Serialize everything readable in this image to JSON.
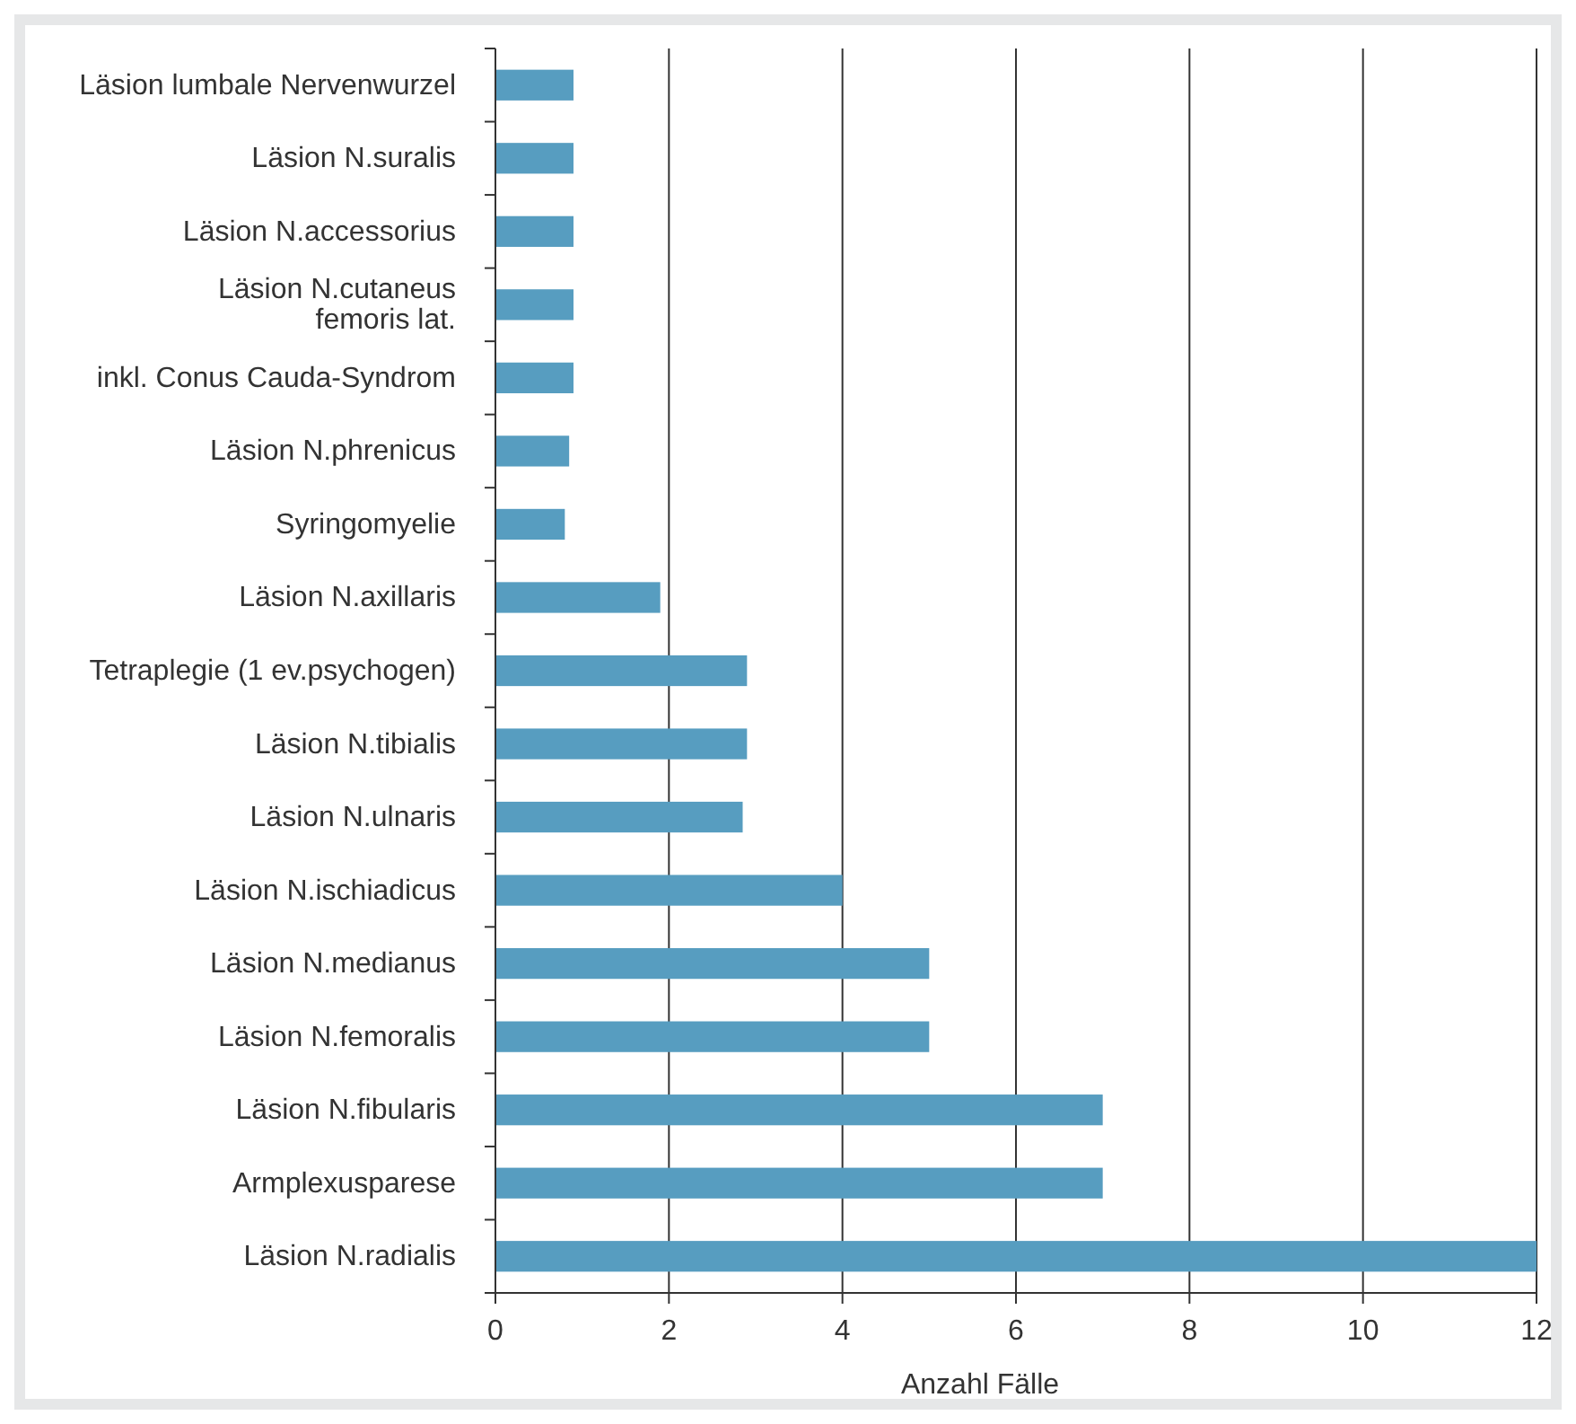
{
  "chart_data": {
    "type": "bar",
    "orientation": "horizontal",
    "xlabel": "Anzahl Fälle",
    "categories": [
      "Läsion lumbale Nervenwurzel",
      "Läsion N.suralis",
      "Läsion N.accessorius",
      "Läsion N.cutaneus\nfemoris lat.",
      "inkl. Conus Cauda-Syndrom",
      "Läsion N.phrenicus",
      "Syringomyelie",
      "Läsion N.axillaris",
      "Tetraplegie (1 ev.psychogen)",
      "Läsion N.tibialis",
      "Läsion N.ulnaris",
      "Läsion N.ischiadicus",
      "Läsion N.medianus",
      "Läsion N.femoralis",
      "Läsion N.fibularis",
      "Armplexusparese",
      "Läsion N.radialis"
    ],
    "values": [
      0.9,
      0.9,
      0.9,
      0.9,
      0.9,
      0.85,
      0.8,
      1.9,
      2.9,
      2.9,
      2.85,
      4,
      5,
      5,
      7,
      7,
      12
    ],
    "color": "#579dc0",
    "xlim": [
      0,
      12
    ],
    "xticks": [
      0,
      2,
      4,
      6,
      8,
      10,
      12
    ],
    "grid": "x"
  }
}
